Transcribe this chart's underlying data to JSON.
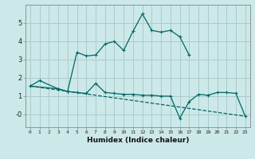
{
  "xlabel": "Humidex (Indice chaleur)",
  "bg_color": "#cce8e8",
  "grid_color": "#aacccc",
  "line_color": "#006666",
  "ylim": [
    -0.7,
    6.0
  ],
  "xlim": [
    -0.5,
    23.5
  ],
  "line1_x": [
    0,
    1,
    3,
    4,
    5,
    6,
    7,
    8,
    9,
    10,
    11,
    12,
    13,
    14,
    15,
    16,
    17
  ],
  "line1_y": [
    1.55,
    1.85,
    1.4,
    1.25,
    3.4,
    3.2,
    3.25,
    3.85,
    4.0,
    3.5,
    4.55,
    5.5,
    4.6,
    4.5,
    4.6,
    4.25,
    3.25
  ],
  "line2_x": [
    0,
    3,
    4,
    5,
    6,
    7,
    8,
    9,
    10,
    11,
    12,
    13,
    14,
    15,
    16,
    17,
    18,
    19,
    20,
    21,
    22,
    23
  ],
  "line2_y": [
    1.55,
    1.4,
    1.25,
    1.2,
    1.15,
    1.7,
    1.2,
    1.15,
    1.1,
    1.1,
    1.05,
    1.05,
    1.0,
    1.0,
    -0.2,
    0.7,
    1.1,
    1.05,
    1.2,
    1.2,
    1.15,
    -0.1
  ],
  "trend_x": [
    0,
    23
  ],
  "trend_y": [
    1.55,
    -0.1
  ],
  "yticks": [
    0,
    1,
    2,
    3,
    4,
    5
  ],
  "ytick_labels": [
    "-0",
    "1",
    "2",
    "3",
    "4",
    "5"
  ]
}
